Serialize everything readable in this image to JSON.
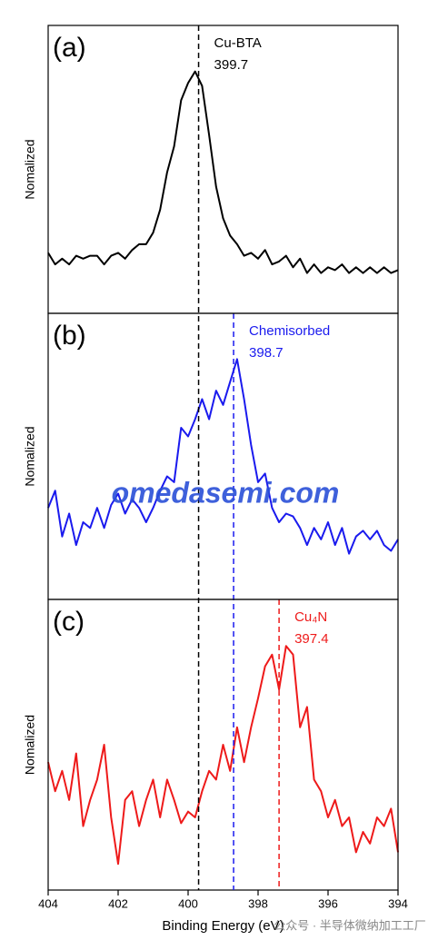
{
  "chart_data": [
    {
      "type": "line",
      "panel_label": "(a)",
      "ylabel": "Nomalized",
      "color": "#000000",
      "x": [
        404,
        403.8,
        403.6,
        403.4,
        403.2,
        403,
        402.8,
        402.6,
        402.4,
        402.2,
        402,
        401.8,
        401.6,
        401.4,
        401.2,
        401,
        400.8,
        400.6,
        400.4,
        400.2,
        400,
        399.8,
        399.6,
        399.4,
        399.2,
        399,
        398.8,
        398.6,
        398.4,
        398.2,
        398,
        397.8,
        397.6,
        397.4,
        397.2,
        397,
        396.8,
        396.6,
        396.4,
        396.2,
        396,
        395.8,
        395.6,
        395.4,
        395.2,
        395,
        394.8,
        394.6,
        394.4,
        394.2,
        394
      ],
      "values": [
        21,
        17,
        19,
        17,
        20,
        19,
        20,
        20,
        17,
        20,
        21,
        19,
        22,
        24,
        24,
        28,
        36,
        49,
        58,
        74,
        80,
        84,
        79,
        62,
        44,
        33,
        27,
        24,
        20,
        21,
        19,
        22,
        17,
        18,
        20,
        16,
        19,
        14,
        17,
        14,
        16,
        15,
        17,
        14,
        16,
        14,
        16,
        14,
        16,
        14,
        15
      ],
      "xlim": [
        404,
        394
      ],
      "ylim": [
        0,
        100
      ],
      "annotation": {
        "label": "Cu-BTA",
        "x": 399.7,
        "color": "#000000"
      }
    },
    {
      "type": "line",
      "panel_label": "(b)",
      "ylabel": "Nomalized",
      "color": "#1a1aee",
      "x": [
        404,
        403.8,
        403.6,
        403.4,
        403.2,
        403,
        402.8,
        402.6,
        402.4,
        402.2,
        402,
        401.8,
        401.6,
        401.4,
        401.2,
        401,
        400.8,
        400.6,
        400.4,
        400.2,
        400,
        399.8,
        399.6,
        399.4,
        399.2,
        399,
        398.8,
        398.6,
        398.4,
        398.2,
        398,
        397.8,
        397.6,
        397.4,
        397.2,
        397,
        396.8,
        396.6,
        396.4,
        396.2,
        396,
        395.8,
        395.6,
        395.4,
        395.2,
        395,
        394.8,
        394.6,
        394.4,
        394.2,
        394
      ],
      "values": [
        32,
        38,
        22,
        30,
        19,
        27,
        25,
        32,
        25,
        33,
        37,
        30,
        35,
        32,
        27,
        32,
        38,
        43,
        41,
        60,
        57,
        63,
        70,
        63,
        73,
        68,
        76,
        84,
        70,
        54,
        41,
        44,
        32,
        27,
        30,
        29,
        25,
        19,
        25,
        21,
        27,
        19,
        25,
        16,
        22,
        24,
        21,
        24,
        19,
        17,
        21
      ],
      "xlim": [
        404,
        394
      ],
      "ylim": [
        0,
        100
      ],
      "annotation": {
        "label": "Chemisorbed",
        "x": 398.7,
        "color": "#1a1aee"
      }
    },
    {
      "type": "line",
      "panel_label": "(c)",
      "ylabel": "Nomalized",
      "xlabel": "Binding Energy (eV)",
      "color": "#ee1a1a",
      "x": [
        404,
        403.8,
        403.6,
        403.4,
        403.2,
        403,
        402.8,
        402.6,
        402.4,
        402.2,
        402,
        401.8,
        401.6,
        401.4,
        401.2,
        401,
        400.8,
        400.6,
        400.4,
        400.2,
        400,
        399.8,
        399.6,
        399.4,
        399.2,
        399,
        398.8,
        398.6,
        398.4,
        398.2,
        398,
        397.8,
        397.6,
        397.4,
        397.2,
        397,
        396.8,
        396.6,
        396.4,
        396.2,
        396,
        395.8,
        395.6,
        395.4,
        395.2,
        395,
        394.8,
        394.6,
        394.4,
        394.2,
        394
      ],
      "values": [
        44,
        34,
        41,
        31,
        47,
        22,
        31,
        38,
        50,
        25,
        9,
        31,
        34,
        22,
        31,
        38,
        25,
        38,
        31,
        23,
        27,
        25,
        34,
        41,
        38,
        50,
        41,
        56,
        44,
        56,
        66,
        77,
        81,
        69,
        84,
        81,
        56,
        63,
        38,
        34,
        25,
        31,
        22,
        25,
        13,
        20,
        16,
        25,
        22,
        28,
        13
      ],
      "xlim": [
        404,
        394
      ],
      "ylim": [
        0,
        100
      ],
      "xticks": [
        404,
        402,
        400,
        398,
        396,
        394
      ],
      "annotation": {
        "label": "Cu₄N",
        "x": 397.4,
        "color": "#ee1a1a"
      }
    }
  ],
  "watermarks": [
    "omedasemi.com",
    "公众号 · 半导体微纳加工工厂"
  ]
}
